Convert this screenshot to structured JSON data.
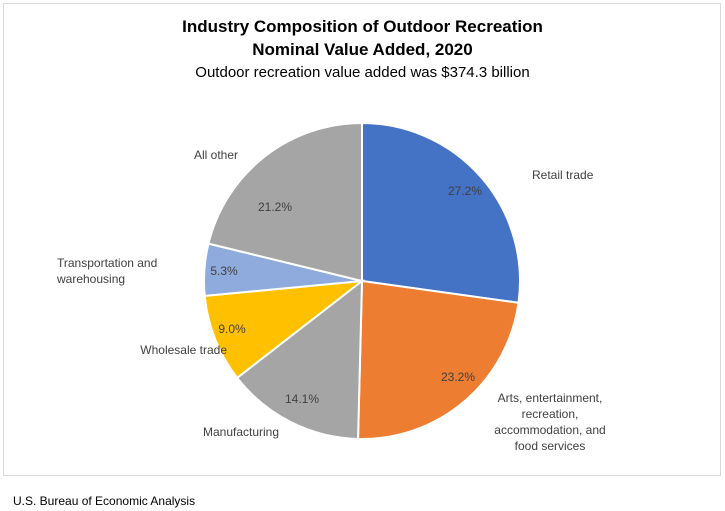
{
  "chart_data": {
    "type": "pie",
    "title": [
      "Industry Composition of Outdoor Recreation",
      "Nominal Value Added, 2020"
    ],
    "subtitle": "Outdoor recreation value added was $374.3 billion",
    "slices": [
      {
        "label": [
          "Retail trade"
        ],
        "value": 27.2,
        "value_label": "27.2%",
        "color": "#4472C4"
      },
      {
        "label": [
          "Arts, entertainment,",
          "recreation,",
          "accommodation, and",
          "food services"
        ],
        "value": 23.2,
        "value_label": "23.2%",
        "color": "#ED7D31"
      },
      {
        "label": [
          "Manufacturing"
        ],
        "value": 14.1,
        "value_label": "14.1%",
        "color": "#A5A5A5"
      },
      {
        "label": [
          "Wholesale trade"
        ],
        "value": 9.0,
        "value_label": "9.0%",
        "color": "#FFC000"
      },
      {
        "label": [
          "Transportation and",
          "warehousing"
        ],
        "value": 5.3,
        "value_label": "5.3%",
        "color": "#8FAADC"
      },
      {
        "label": [
          "All other"
        ],
        "value": 21.2,
        "value_label": "21.2%",
        "color": "#A5A5A5"
      }
    ],
    "start_angle": "12 o'clock",
    "direction": "clockwise"
  },
  "source": "U.S. Bureau of Economic Analysis"
}
